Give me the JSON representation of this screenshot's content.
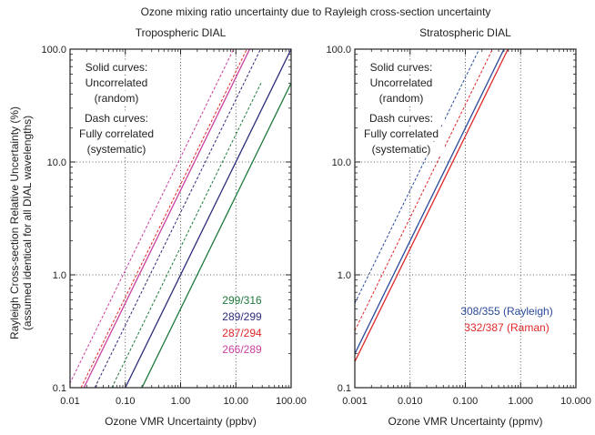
{
  "figure": {
    "title": "Ozone mixing ratio uncertainty due to Rayleigh cross-section uncertainty",
    "ylabel_line1": "Rayleigh Cross-section Relative Uncertainty (%)",
    "ylabel_line2": "(assumed identical for all DIAL wavelengths)"
  },
  "chart_data": [
    {
      "type": "line",
      "title": "Tropospheric DIAL",
      "xlabel": "Ozone VMR Uncertainty (ppbv)",
      "xscale": "log",
      "yscale": "log",
      "xlim": [
        0.01,
        100.0
      ],
      "ylim": [
        0.1,
        100.0
      ],
      "xticks": [
        0.01,
        0.1,
        1,
        10,
        100
      ],
      "xtick_labels": [
        "0.01",
        "0.10",
        "1.00",
        "10.00",
        "100.00"
      ],
      "yticks": [
        0.1,
        1,
        10,
        100
      ],
      "ytick_labels": [
        "0.1",
        "1.0",
        "10.0",
        "100.0"
      ],
      "grid": "dotted at decades",
      "annotations": [
        "Solid curves:",
        "Uncorrelated",
        "(random)",
        "Dash curves:",
        "Fully correlated",
        "(systematic)"
      ],
      "legend": {
        "placement": "bottom-right",
        "entries": [
          "299/316",
          "289/299",
          "287/294",
          "266/289"
        ]
      },
      "series": [
        {
          "name": "299/316",
          "color": "#1e7a3c",
          "style": "solid",
          "points": [
            [
              0.2,
              0.1
            ],
            [
              100.0,
              50.0
            ]
          ]
        },
        {
          "name": "299/316",
          "color": "#1e7a3c",
          "style": "dashed",
          "points": [
            [
              0.057,
              0.1
            ],
            [
              28.5,
              50.0
            ]
          ]
        },
        {
          "name": "289/299",
          "color": "#2d2d7a",
          "style": "solid",
          "points": [
            [
              0.1,
              0.1
            ],
            [
              100.0,
              100.0
            ]
          ]
        },
        {
          "name": "289/299",
          "color": "#2d2d7a",
          "style": "dashed",
          "points": [
            [
              0.028,
              0.1
            ],
            [
              28.0,
              100.0
            ]
          ]
        },
        {
          "name": "287/294",
          "color": "#e0282a",
          "style": "dashed",
          "points": [
            [
              0.0158,
              0.1
            ],
            [
              15.8,
              100.0
            ]
          ]
        },
        {
          "name": "266/289",
          "color": "#c9419f",
          "style": "solid",
          "points": [
            [
              0.0178,
              0.1
            ],
            [
              17.8,
              100.0
            ]
          ]
        },
        {
          "name": "266/289",
          "color": "#c9419f",
          "style": "dashed",
          "points": [
            [
              0.0091,
              0.1
            ],
            [
              9.1,
              100.0
            ]
          ]
        }
      ]
    },
    {
      "type": "line",
      "title": "Stratospheric DIAL",
      "xlabel": "Ozone VMR Uncertainty (ppmv)",
      "xscale": "log",
      "yscale": "log",
      "xlim": [
        0.001,
        10.0
      ],
      "ylim": [
        0.1,
        100.0
      ],
      "xticks": [
        0.001,
        0.01,
        0.1,
        1,
        10
      ],
      "xtick_labels": [
        "0.001",
        "0.010",
        "0.100",
        "1.000",
        "10.000"
      ],
      "yticks": [
        0.1,
        1,
        10,
        100
      ],
      "ytick_labels": [
        "0.1",
        "1.0",
        "10.0",
        "100.0"
      ],
      "grid": "dotted at decades",
      "annotations": [
        "Solid curves:",
        "Uncorrelated",
        "(random)",
        "Dash curves:",
        "Fully correlated",
        "(systematic)"
      ],
      "legend": {
        "placement": "bottom-right",
        "entries": [
          "308/355 (Rayleigh)",
          "332/387 (Raman)"
        ]
      },
      "series": [
        {
          "name": "308/355 (Rayleigh)",
          "color": "#2a4a9a",
          "style": "solid",
          "points": [
            [
              0.001,
              0.2
            ],
            [
              0.5,
              100.0
            ]
          ]
        },
        {
          "name": "308/355 (Rayleigh)",
          "color": "#2a4a9a",
          "style": "dashed",
          "points": [
            [
              0.001,
              0.56
            ],
            [
              0.178,
              100.0
            ]
          ]
        },
        {
          "name": "332/387 (Raman)",
          "color": "#e0282a",
          "style": "solid",
          "points": [
            [
              0.001,
              0.17
            ],
            [
              0.59,
              100.0
            ]
          ]
        },
        {
          "name": "332/387 (Raman)",
          "color": "#e0282a",
          "style": "dashed",
          "points": [
            [
              0.001,
              0.32
            ],
            [
              0.31,
              100.0
            ]
          ]
        }
      ]
    }
  ]
}
